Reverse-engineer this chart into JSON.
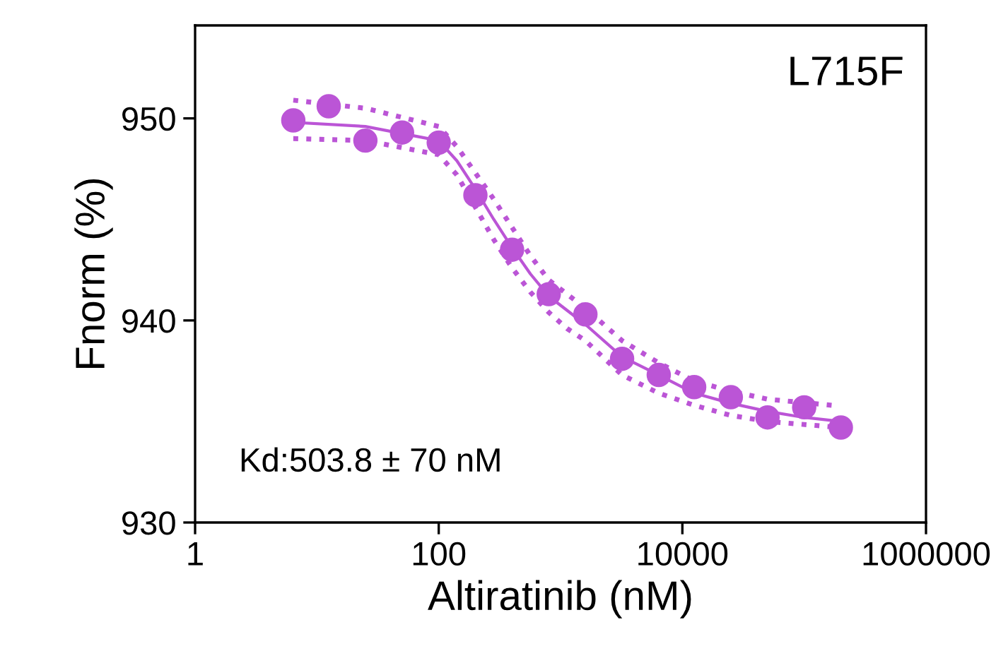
{
  "chart_data": {
    "type": "line",
    "xlabel": "Altiratinib (nM)",
    "ylabel": "Fnorm (%)",
    "log": "x",
    "xlim": [
      1,
      1000000
    ],
    "xticks": [
      1,
      100,
      10000,
      1000000
    ],
    "ylim": [
      930,
      954.6
    ],
    "yticks": [
      930,
      940,
      950
    ],
    "grid": false,
    "legend": false,
    "annotations": [
      "L715F",
      "Kd:503.8 ± 70 nM"
    ],
    "series": [
      {
        "type": "scatter",
        "marker": "circle",
        "color": "#bb55d6",
        "x": [
          6.4,
          12.5,
          25,
          50,
          100,
          200,
          400,
          800,
          1600,
          3200,
          6400,
          12500,
          25000,
          50000,
          100000,
          200000
        ],
        "values": [
          949.9,
          950.6,
          948.9,
          949.3,
          948.8,
          946.2,
          943.5,
          941.3,
          940.3,
          938.1,
          937.3,
          936.7,
          936.2,
          935.2,
          935.7,
          934.7
        ]
      },
      {
        "line_style": "solid",
        "color": "#bb55d6",
        "x": [
          6.4,
          25,
          100,
          141,
          200,
          283,
          400,
          566,
          800,
          1130,
          1600,
          3200,
          6400,
          12500,
          25000,
          50000,
          100000,
          200000
        ],
        "values": [
          949.8,
          949.6,
          948.9,
          947.9,
          946.5,
          945.0,
          943.6,
          942.3,
          941.2,
          940.5,
          939.8,
          938.2,
          937.3,
          936.4,
          935.9,
          935.5,
          935.2,
          935.0
        ]
      },
      {
        "line_style": "dotted",
        "color": "#bb55d6",
        "x": [
          6.4,
          25,
          100,
          141,
          200,
          283,
          400,
          566,
          800,
          1130,
          1600,
          3200,
          6400,
          12500,
          25000,
          50000,
          170000
        ],
        "values": [
          950.9,
          950.5,
          949.6,
          948.6,
          947.3,
          946.0,
          944.6,
          943.2,
          942.0,
          941.3,
          940.6,
          939.0,
          937.9,
          937.0,
          936.5,
          936.1,
          935.8
        ]
      },
      {
        "line_style": "dotted",
        "color": "#bb55d6",
        "x": [
          6.4,
          25,
          100,
          141,
          200,
          283,
          400,
          566,
          800,
          1130,
          1600,
          3200,
          6400,
          12500,
          25000,
          50000,
          200000
        ],
        "values": [
          949.0,
          948.9,
          948.2,
          947.2,
          945.6,
          944.0,
          942.6,
          941.4,
          940.4,
          939.6,
          939.0,
          937.3,
          936.4,
          935.8,
          935.3,
          935.0,
          934.7
        ]
      }
    ]
  }
}
